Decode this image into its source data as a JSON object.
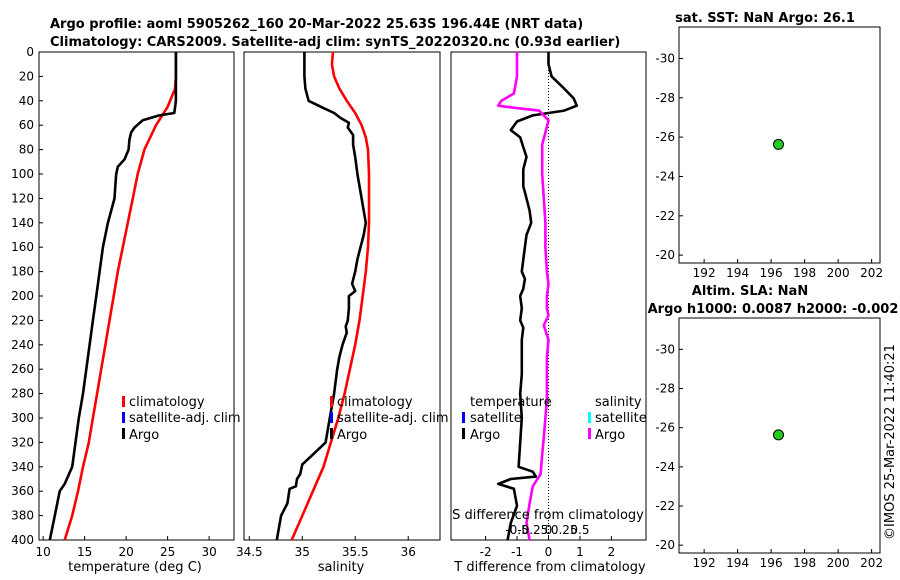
{
  "header": {
    "line1": "Argo profile: aoml 5905262_160 20-Mar-2022 25.63S 196.44E (NRT data)",
    "line2": "Climatology: CARS2009. Satellite-adj clim: synTS_20220320.nc (0.93d earlier)"
  },
  "colors": {
    "climatology": "#ff0000",
    "satellite": "#0000ff",
    "argo": "#000000",
    "sal_satellite": "#00ffff",
    "sal_argo": "#ff00ff",
    "marker": "#22cc22"
  },
  "legend_temp": [
    "climatology",
    "satellite-adj. clim",
    "Argo"
  ],
  "legend_sal": [
    "climatology",
    "satellite-adj. clim",
    "Argo"
  ],
  "legend_diff": {
    "temperature_title": "temperature",
    "salinity_title": "salinity",
    "temp_items": [
      "satellite",
      "Argo"
    ],
    "sal_items": [
      "satellite",
      "Argo"
    ]
  },
  "stamp": "©IMOS 25-Mar-2022 11:40:21",
  "chart_data": [
    {
      "type": "line",
      "id": "temperature",
      "xlabel": "temperature (deg C)",
      "ylabel": "",
      "xlim": [
        9.5,
        33
      ],
      "ylim": [
        400,
        0
      ],
      "xticks": [
        "10",
        "15",
        "20",
        "25",
        "30"
      ],
      "xtick_values": [
        10,
        15,
        20,
        25,
        30
      ],
      "yticks": [
        "0",
        "20",
        "40",
        "60",
        "80",
        "100",
        "120",
        "140",
        "160",
        "180",
        "200",
        "220",
        "240",
        "260",
        "280",
        "300",
        "320",
        "340",
        "360",
        "380",
        "400"
      ],
      "ytick_values": [
        0,
        20,
        40,
        60,
        80,
        100,
        120,
        140,
        160,
        180,
        200,
        220,
        240,
        260,
        280,
        300,
        320,
        340,
        360,
        380,
        400
      ],
      "series": [
        {
          "name": "climatology",
          "color": "#ff0000",
          "points": [
            [
              26,
              0
            ],
            [
              26,
              20
            ],
            [
              25.9,
              30
            ],
            [
              25,
              45
            ],
            [
              23.6,
              60
            ],
            [
              22.2,
              80
            ],
            [
              21.4,
              100
            ],
            [
              20.8,
              120
            ],
            [
              20.2,
              140
            ],
            [
              19.6,
              160
            ],
            [
              19,
              180
            ],
            [
              18.5,
              200
            ],
            [
              18,
              220
            ],
            [
              17.5,
              240
            ],
            [
              17,
              260
            ],
            [
              16.5,
              280
            ],
            [
              16,
              300
            ],
            [
              15.5,
              320
            ],
            [
              14.8,
              340
            ],
            [
              14.2,
              360
            ],
            [
              13.5,
              380
            ],
            [
              12.6,
              400
            ]
          ]
        },
        {
          "name": "Argo",
          "color": "#000000",
          "points": [
            [
              26,
              0
            ],
            [
              26,
              20
            ],
            [
              26,
              40
            ],
            [
              25.8,
              50
            ],
            [
              24,
              52
            ],
            [
              22,
              56
            ],
            [
              21,
              62
            ],
            [
              20.6,
              66
            ],
            [
              20.4,
              72
            ],
            [
              20.3,
              80
            ],
            [
              19.8,
              88
            ],
            [
              19,
              94
            ],
            [
              18.8,
              100
            ],
            [
              18.7,
              110
            ],
            [
              18.6,
              120
            ],
            [
              18.2,
              130
            ],
            [
              17.8,
              140
            ],
            [
              17.5,
              150
            ],
            [
              17.2,
              160
            ],
            [
              16.8,
              180
            ],
            [
              16.4,
              200
            ],
            [
              16,
              220
            ],
            [
              15.6,
              240
            ],
            [
              15.2,
              260
            ],
            [
              14.8,
              280
            ],
            [
              14.3,
              300
            ],
            [
              13.9,
              320
            ],
            [
              13.5,
              340
            ],
            [
              12.6,
              354
            ],
            [
              12,
              360
            ],
            [
              11.4,
              380
            ],
            [
              10.8,
              400
            ]
          ]
        }
      ]
    },
    {
      "type": "line",
      "id": "salinity",
      "xlabel": "salinity",
      "ylabel": "",
      "xlim": [
        34.45,
        36.3
      ],
      "ylim": [
        400,
        0
      ],
      "xticks": [
        "34.5",
        "35",
        "35.5",
        "36"
      ],
      "xtick_values": [
        34.5,
        35,
        35.5,
        36
      ],
      "series": [
        {
          "name": "climatology",
          "color": "#ff0000",
          "points": [
            [
              35.29,
              0
            ],
            [
              35.28,
              10
            ],
            [
              35.3,
              20
            ],
            [
              35.35,
              30
            ],
            [
              35.42,
              40
            ],
            [
              35.5,
              50
            ],
            [
              35.56,
              60
            ],
            [
              35.6,
              70
            ],
            [
              35.62,
              80
            ],
            [
              35.63,
              100
            ],
            [
              35.63,
              120
            ],
            [
              35.63,
              140
            ],
            [
              35.62,
              160
            ],
            [
              35.6,
              180
            ],
            [
              35.57,
              200
            ],
            [
              35.54,
              220
            ],
            [
              35.5,
              240
            ],
            [
              35.45,
              260
            ],
            [
              35.4,
              280
            ],
            [
              35.34,
              300
            ],
            [
              35.27,
              320
            ],
            [
              35.2,
              340
            ],
            [
              35.1,
              360
            ],
            [
              35.0,
              380
            ],
            [
              34.9,
              400
            ]
          ]
        },
        {
          "name": "Argo",
          "color": "#000000",
          "points": [
            [
              35.02,
              0
            ],
            [
              35.02,
              20
            ],
            [
              35.03,
              30
            ],
            [
              35.06,
              40
            ],
            [
              35.2,
              46
            ],
            [
              35.3,
              50
            ],
            [
              35.36,
              54
            ],
            [
              35.44,
              58
            ],
            [
              35.43,
              62
            ],
            [
              35.48,
              68
            ],
            [
              35.48,
              76
            ],
            [
              35.5,
              86
            ],
            [
              35.52,
              100
            ],
            [
              35.56,
              120
            ],
            [
              35.6,
              140
            ],
            [
              35.58,
              150
            ],
            [
              35.55,
              160
            ],
            [
              35.52,
              170
            ],
            [
              35.5,
              180
            ],
            [
              35.47,
              190
            ],
            [
              35.5,
              196
            ],
            [
              35.44,
              200
            ],
            [
              35.44,
              210
            ],
            [
              35.43,
              220
            ],
            [
              35.41,
              225
            ],
            [
              35.42,
              230
            ],
            [
              35.38,
              240
            ],
            [
              35.35,
              250
            ],
            [
              35.33,
              260
            ],
            [
              35.3,
              280
            ],
            [
              35.26,
              300
            ],
            [
              35.22,
              320
            ],
            [
              35.1,
              330
            ],
            [
              35.0,
              338
            ],
            [
              34.98,
              346
            ],
            [
              34.95,
              350
            ],
            [
              34.94,
              356
            ],
            [
              34.88,
              358
            ],
            [
              34.86,
              370
            ],
            [
              34.8,
              380
            ],
            [
              34.76,
              400
            ]
          ]
        }
      ]
    },
    {
      "type": "line",
      "id": "difference",
      "xlabel": "T difference from climatology",
      "x2label": "S difference from climatology",
      "xlim": [
        -3.1,
        3.1
      ],
      "ylim": [
        400,
        0
      ],
      "xticks": [
        "-2",
        "-1",
        "0",
        "1",
        "2"
      ],
      "xtick_values": [
        -2,
        -1,
        0,
        1,
        2
      ],
      "x2ticks": [
        "-0.5",
        "-0.25",
        "0",
        "0.25",
        "0.5"
      ],
      "x2tick_values": [
        -1,
        -0.5,
        0,
        0.5,
        1
      ],
      "series": [
        {
          "name": "T Argo",
          "color": "#000000",
          "points": [
            [
              0,
              0
            ],
            [
              0,
              10
            ],
            [
              0.1,
              20
            ],
            [
              0.5,
              30
            ],
            [
              0.8,
              38
            ],
            [
              0.9,
              44
            ],
            [
              0.5,
              48
            ],
            [
              0,
              50
            ],
            [
              -0.5,
              52
            ],
            [
              -1,
              57
            ],
            [
              -1.2,
              64
            ],
            [
              -0.9,
              70
            ],
            [
              -0.8,
              78
            ],
            [
              -0.7,
              86
            ],
            [
              -0.8,
              96
            ],
            [
              -0.8,
              110
            ],
            [
              -0.7,
              120
            ],
            [
              -0.6,
              130
            ],
            [
              -0.55,
              140
            ],
            [
              -0.7,
              150
            ],
            [
              -0.75,
              160
            ],
            [
              -0.8,
              170
            ],
            [
              -0.85,
              180
            ],
            [
              -0.75,
              186
            ],
            [
              -0.8,
              194
            ],
            [
              -0.9,
              200
            ],
            [
              -0.85,
              210
            ],
            [
              -0.9,
              220
            ],
            [
              -0.8,
              226
            ],
            [
              -0.85,
              236
            ],
            [
              -0.85,
              250
            ],
            [
              -0.85,
              264
            ],
            [
              -0.9,
              280
            ],
            [
              -0.85,
              300
            ],
            [
              -0.9,
              320
            ],
            [
              -0.95,
              340
            ],
            [
              -0.5,
              344
            ],
            [
              -0.4,
              348
            ],
            [
              -1.2,
              350
            ],
            [
              -1.6,
              354
            ],
            [
              -1.1,
              358
            ],
            [
              -1,
              372
            ],
            [
              -1.2,
              386
            ],
            [
              -1.3,
              400
            ]
          ]
        },
        {
          "name": "S Argo",
          "color": "#ff00ff",
          "points": [
            [
              -1,
              0
            ],
            [
              -1,
              10
            ],
            [
              -1,
              20
            ],
            [
              -1.1,
              34
            ],
            [
              -1.5,
              40
            ],
            [
              -1.6,
              44
            ],
            [
              -1,
              46
            ],
            [
              -0.3,
              48
            ],
            [
              0,
              56
            ],
            [
              -0.1,
              66
            ],
            [
              -0.2,
              76
            ],
            [
              -0.2,
              100
            ],
            [
              -0.15,
              120
            ],
            [
              -0.1,
              140
            ],
            [
              -0.1,
              160
            ],
            [
              -0.05,
              180
            ],
            [
              0,
              190
            ],
            [
              -0.05,
              200
            ],
            [
              -0.05,
              210
            ],
            [
              0,
              216
            ],
            [
              -0.15,
              224
            ],
            [
              0,
              236
            ],
            [
              -0.05,
              250
            ],
            [
              -0.05,
              270
            ],
            [
              -0.05,
              286
            ],
            [
              -0.1,
              300
            ],
            [
              -0.15,
              316
            ],
            [
              -0.2,
              330
            ],
            [
              -0.25,
              346
            ],
            [
              -0.5,
              356
            ],
            [
              -0.6,
              370
            ],
            [
              -0.7,
              386
            ],
            [
              -0.6,
              400
            ]
          ]
        }
      ]
    },
    {
      "type": "scatter",
      "id": "sst_map",
      "title": "sat. SST: NaN Argo: 26.1",
      "xlim": [
        190.5,
        202.5
      ],
      "ylim": [
        -19.6,
        -31.6
      ],
      "xticks": [
        "192",
        "194",
        "196",
        "198",
        "200",
        "202"
      ],
      "xtick_values": [
        192,
        194,
        196,
        198,
        200,
        202
      ],
      "yticks": [
        "-20",
        "-22",
        "-24",
        "-26",
        "-28",
        "-30"
      ],
      "ytick_values": [
        -20,
        -22,
        -24,
        -26,
        -28,
        -30
      ],
      "points": [
        [
          196.44,
          -25.63
        ]
      ]
    },
    {
      "type": "scatter",
      "id": "sla_map",
      "title": "Altim. SLA: NaN",
      "subtitle": "Argo h1000: 0.0087 h2000: -0.002",
      "xlim": [
        190.5,
        202.5
      ],
      "ylim": [
        -19.6,
        -31.6
      ],
      "xticks": [
        "192",
        "194",
        "196",
        "198",
        "200",
        "202"
      ],
      "xtick_values": [
        192,
        194,
        196,
        198,
        200,
        202
      ],
      "yticks": [
        "-20",
        "-22",
        "-24",
        "-26",
        "-28",
        "-30"
      ],
      "ytick_values": [
        -20,
        -22,
        -24,
        -26,
        -28,
        -30
      ],
      "points": [
        [
          196.44,
          -25.63
        ]
      ]
    }
  ]
}
